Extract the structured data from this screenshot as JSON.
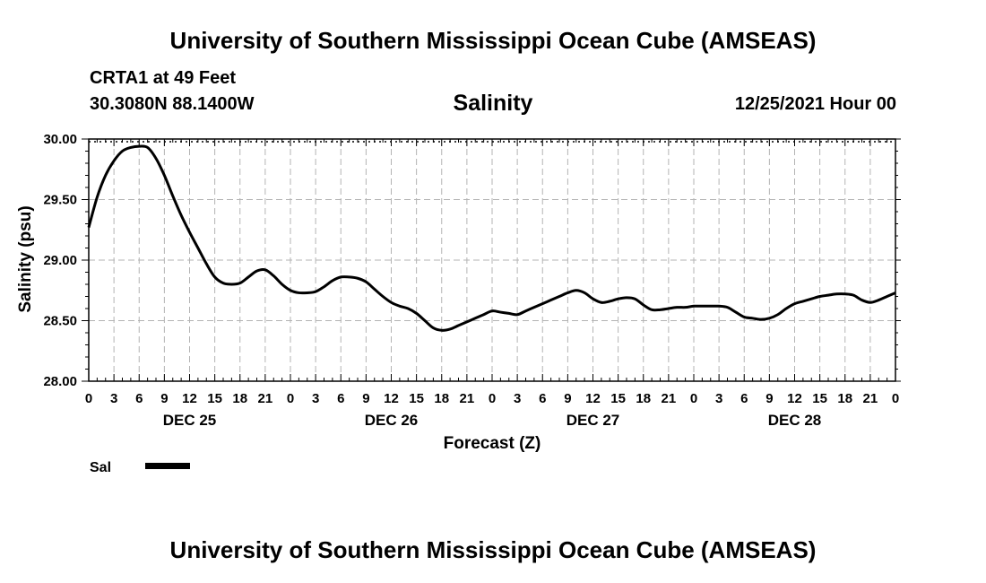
{
  "header": {
    "title": "University of Southern Mississippi Ocean Cube (AMSEAS)",
    "station": "CRTA1 at 49 Feet",
    "coordinates": "30.3080N  88.1400W",
    "plot_title": "Salinity",
    "datetime": "12/25/2021 Hour 00"
  },
  "footer": {
    "title": "University of Southern Mississippi Ocean Cube (AMSEAS)"
  },
  "chart_data": {
    "type": "line",
    "title": "Salinity",
    "xlabel": "Forecast (Z)",
    "ylabel": "Salinity (psu)",
    "ylim": [
      28.0,
      30.0
    ],
    "xlim_hours": [
      0,
      96
    ],
    "grid": true,
    "y_ticks": [
      "28.00",
      "28.50",
      "29.00",
      "29.50",
      "30.00"
    ],
    "x_tick_labels": [
      "0",
      "3",
      "6",
      "9",
      "12",
      "15",
      "18",
      "21",
      "0",
      "3",
      "6",
      "9",
      "12",
      "15",
      "18",
      "21",
      "0",
      "3",
      "6",
      "9",
      "12",
      "15",
      "18",
      "21",
      "0",
      "3",
      "6",
      "9",
      "12",
      "15",
      "18",
      "21",
      "0"
    ],
    "day_labels": [
      {
        "label": "DEC 25",
        "hour": 12
      },
      {
        "label": "DEC 26",
        "hour": 36
      },
      {
        "label": "DEC 27",
        "hour": 60
      },
      {
        "label": "DEC 28",
        "hour": 84
      }
    ],
    "legend": {
      "label": "Sal",
      "placement": "bottom-left"
    },
    "series": [
      {
        "name": "Sal",
        "hours": [
          0,
          1,
          2,
          3,
          4,
          5,
          6,
          7,
          8,
          9,
          10,
          11,
          12,
          13,
          14,
          15,
          16,
          17,
          18,
          19,
          20,
          21,
          22,
          23,
          24,
          25,
          26,
          27,
          28,
          29,
          30,
          31,
          32,
          33,
          34,
          35,
          36,
          37,
          38,
          39,
          40,
          41,
          42,
          43,
          44,
          45,
          46,
          47,
          48,
          49,
          50,
          51,
          52,
          53,
          54,
          55,
          56,
          57,
          58,
          59,
          60,
          61,
          62,
          63,
          64,
          65,
          66,
          67,
          68,
          69,
          70,
          71,
          72,
          73,
          74,
          75,
          76,
          77,
          78,
          79,
          80,
          81,
          82,
          83,
          84,
          85,
          86,
          87,
          88,
          89,
          90,
          91,
          92,
          93,
          94,
          95,
          96
        ],
        "values": [
          29.27,
          29.52,
          29.7,
          29.82,
          29.9,
          29.93,
          29.94,
          29.93,
          29.84,
          29.7,
          29.53,
          29.37,
          29.23,
          29.1,
          28.97,
          28.86,
          28.81,
          28.8,
          28.81,
          28.86,
          28.91,
          28.92,
          28.87,
          28.8,
          28.75,
          28.73,
          28.73,
          28.74,
          28.78,
          28.83,
          28.86,
          28.86,
          28.85,
          28.82,
          28.76,
          28.7,
          28.65,
          28.62,
          28.6,
          28.56,
          28.5,
          28.44,
          28.42,
          28.43,
          28.46,
          28.49,
          28.52,
          28.55,
          28.58,
          28.57,
          28.56,
          28.55,
          28.58,
          28.61,
          28.64,
          28.67,
          28.7,
          28.73,
          28.75,
          28.73,
          28.68,
          28.65,
          28.66,
          28.68,
          28.69,
          28.68,
          28.63,
          28.59,
          28.59,
          28.6,
          28.61,
          28.61,
          28.62,
          28.62,
          28.62,
          28.62,
          28.61,
          28.57,
          28.53,
          28.52,
          28.51,
          28.52,
          28.55,
          28.6,
          28.64,
          28.66,
          28.68,
          28.7,
          28.71,
          28.72,
          28.72,
          28.71,
          28.67,
          28.65,
          28.67,
          28.7,
          28.73
        ]
      }
    ]
  }
}
